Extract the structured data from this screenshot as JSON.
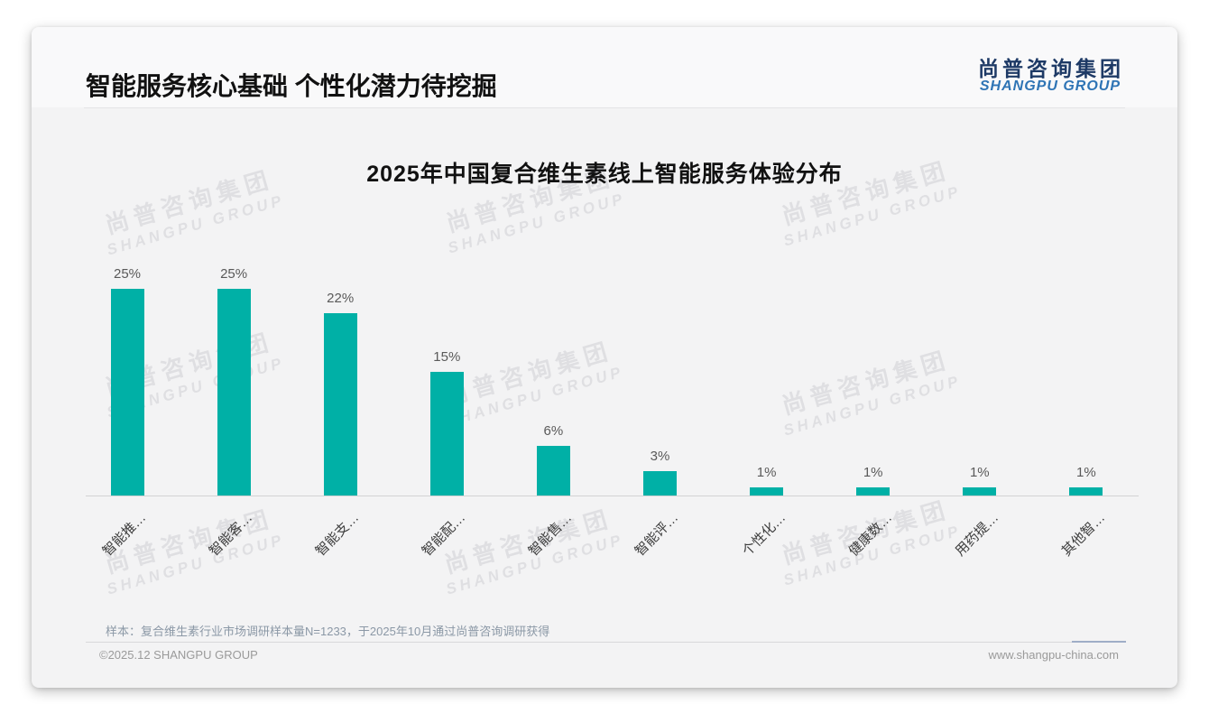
{
  "header": {
    "title": "智能服务核心基础 个性化潜力待挖掘",
    "logo_cn": "尚普咨询集团",
    "logo_en": "SHANGPU GROUP"
  },
  "watermark": {
    "cn": "尚普咨询集团",
    "en": "SHANGPU GROUP"
  },
  "chart_data": {
    "type": "bar",
    "title": "2025年中国复合维生素线上智能服务体验分布",
    "categories": [
      "智能推…",
      "智能客…",
      "智能支…",
      "智能配…",
      "智能售…",
      "智能评…",
      "个性化…",
      "健康数…",
      "用药提…",
      "其他智…"
    ],
    "values": [
      25,
      25,
      22,
      15,
      6,
      3,
      1,
      1,
      1,
      1
    ],
    "value_labels": [
      "25%",
      "25%",
      "22%",
      "15%",
      "6%",
      "3%",
      "1%",
      "1%",
      "1%",
      "1%"
    ],
    "xlabel": "",
    "ylabel": "",
    "ylim": [
      0,
      28
    ],
    "grid": false,
    "legend_position": "none",
    "bar_color": "#00b0a6"
  },
  "footnote": "样本：复合维生素行业市场调研样本量N=1233，于2025年10月通过尚普咨询调研获得",
  "footer": {
    "copyright": "©2025.12 SHANGPU GROUP",
    "website": "www.shangpu-china.com"
  },
  "colors": {
    "accent_teal": "#00b0a6",
    "logo_navy": "#1e3a66",
    "logo_blue": "#2e74b5",
    "card_bg": "#f3f3f4"
  }
}
